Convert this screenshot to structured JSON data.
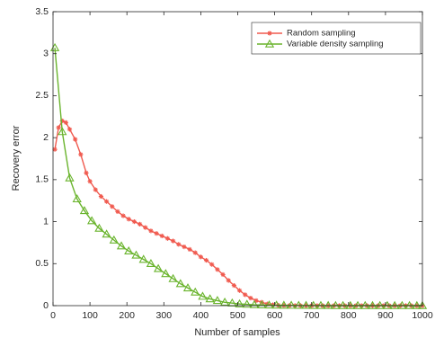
{
  "chart_data": {
    "type": "line",
    "xlabel": "Number of samples",
    "ylabel": "Recovery error",
    "xlim": [
      0,
      1000
    ],
    "ylim": [
      0,
      3.5
    ],
    "xticks": [
      "0",
      "100",
      "200",
      "300",
      "400",
      "500",
      "600",
      "700",
      "800",
      "900",
      "1000"
    ],
    "yticks": [
      "0",
      "0.5",
      "1",
      "1.5",
      "2",
      "2.5",
      "3",
      "3.5"
    ],
    "grid": false,
    "legend_position": "top-right",
    "series": [
      {
        "name": "Random sampling",
        "color": "#f05a4f",
        "marker": "asterisk",
        "x": [
          5,
          15,
          25,
          35,
          45,
          60,
          75,
          90,
          100,
          115,
          130,
          145,
          160,
          175,
          190,
          205,
          220,
          235,
          250,
          265,
          280,
          295,
          310,
          325,
          340,
          355,
          370,
          385,
          400,
          415,
          430,
          445,
          460,
          475,
          490,
          505,
          520,
          535,
          550,
          565,
          580,
          595,
          610,
          625,
          640,
          655,
          670,
          685,
          700,
          715,
          730,
          745,
          760,
          775,
          790,
          805,
          820,
          835,
          850,
          865,
          880,
          895,
          910,
          925,
          940,
          955,
          970,
          985,
          1000
        ],
        "values": [
          1.86,
          2.12,
          2.2,
          2.18,
          2.1,
          1.98,
          1.8,
          1.58,
          1.48,
          1.38,
          1.3,
          1.24,
          1.18,
          1.12,
          1.07,
          1.03,
          1.0,
          0.97,
          0.93,
          0.89,
          0.86,
          0.83,
          0.8,
          0.77,
          0.73,
          0.7,
          0.67,
          0.63,
          0.58,
          0.54,
          0.49,
          0.43,
          0.37,
          0.3,
          0.24,
          0.18,
          0.13,
          0.09,
          0.06,
          0.04,
          0.02,
          0.01,
          0.005,
          0.003,
          0.002,
          0.001,
          0.001,
          0.001,
          0,
          0,
          0,
          0,
          0,
          0,
          0,
          0,
          0,
          0,
          0,
          0,
          0,
          0,
          0,
          0,
          0,
          0,
          0,
          0,
          0
        ]
      },
      {
        "name": "Variable density sampling",
        "color": "#6ab42d",
        "marker": "triangle",
        "x": [
          5,
          25,
          45,
          65,
          85,
          105,
          125,
          145,
          165,
          185,
          205,
          225,
          245,
          265,
          285,
          305,
          325,
          345,
          365,
          385,
          405,
          425,
          445,
          465,
          485,
          505,
          525,
          545,
          565,
          585,
          605,
          625,
          645,
          665,
          685,
          705,
          725,
          745,
          765,
          785,
          805,
          825,
          845,
          865,
          885,
          905,
          925,
          945,
          965,
          985,
          1000
        ],
        "values": [
          3.07,
          2.07,
          1.52,
          1.27,
          1.13,
          1.01,
          0.92,
          0.85,
          0.78,
          0.71,
          0.65,
          0.6,
          0.55,
          0.5,
          0.44,
          0.38,
          0.32,
          0.26,
          0.21,
          0.16,
          0.11,
          0.08,
          0.06,
          0.04,
          0.03,
          0.02,
          0.015,
          0.01,
          0.008,
          0.006,
          0.005,
          0.004,
          0.003,
          0.002,
          0.002,
          0.001,
          0.001,
          0.001,
          0,
          0,
          0,
          0,
          0,
          0,
          0,
          0,
          0,
          0,
          0,
          0,
          0
        ]
      }
    ]
  }
}
